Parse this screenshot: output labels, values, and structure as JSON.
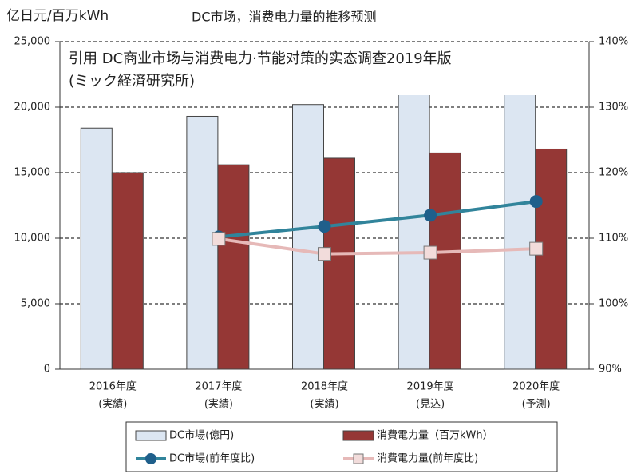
{
  "chart_data": {
    "type": "bar_line",
    "title": "DC市场，消费电力量的推移预测",
    "y_label": "亿日元/百万kWh",
    "annotations": [
      "引用 DC商业市场与消费电力·节能对策的实态调查2019年版",
      "(ミック経済研究所)"
    ],
    "categories": [
      [
        "2016年度",
        "(実績)"
      ],
      [
        "2017年度",
        "(実績)"
      ],
      [
        "2018年度",
        "(実績)"
      ],
      [
        "2019年度",
        "(見込)"
      ],
      [
        "2020年度",
        "(予測)"
      ]
    ],
    "ylim": [
      0,
      25000
    ],
    "yticks": [
      0,
      {
        "value": 5000,
        "label": "5,000"
      },
      {
        "value": 10000,
        "label": "10,000"
      },
      {
        "value": 15000,
        "label": "15,000"
      },
      {
        "value": 20000,
        "label": "20,000"
      },
      {
        "value": 25000,
        "label": "25,000"
      }
    ],
    "y2lim": [
      90,
      140
    ],
    "y2ticks": [
      {
        "value": 90,
        "label": "90%"
      },
      {
        "value": 100,
        "label": "100%"
      },
      {
        "value": 110,
        "label": "110%"
      },
      {
        "value": 120,
        "label": "120%"
      },
      {
        "value": 130,
        "label": "130%"
      },
      {
        "value": 140,
        "label": "140%"
      }
    ],
    "grid": true,
    "series": [
      {
        "name": "DC市場(億円)",
        "kind": "bar",
        "color": "#dce6f2",
        "values": [
          18400,
          19300,
          20200,
          21200,
          22000
        ]
      },
      {
        "name": "消費電力量（百万kWh）",
        "kind": "bar",
        "color": "#953735",
        "values": [
          15000,
          15600,
          16100,
          16500,
          16800
        ]
      },
      {
        "name": "DC市場(前年度比)",
        "kind": "line",
        "axis": "y2",
        "color": "#31849b",
        "marker_color": "#1f5f8b",
        "values": [
          null,
          110.2,
          111.8,
          113.5,
          115.6
        ]
      },
      {
        "name": "消費電力量(前年度比)",
        "kind": "line",
        "axis": "y2",
        "color": "#e6b9b8",
        "marker_color": "#f2dcdb",
        "values": [
          null,
          109.9,
          107.6,
          107.8,
          108.4
        ]
      }
    ]
  }
}
